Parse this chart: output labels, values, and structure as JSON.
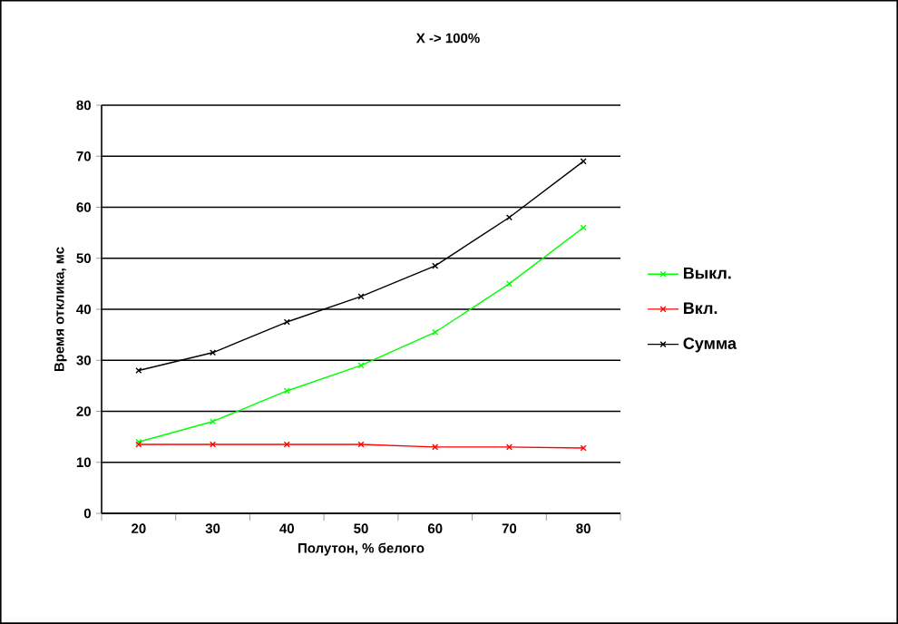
{
  "chart_data": {
    "type": "line",
    "title": "X -> 100%",
    "xlabel": "Полутон, % белого",
    "ylabel": "Время отклика, мс",
    "categories": [
      "20",
      "30",
      "40",
      "50",
      "60",
      "70",
      "80"
    ],
    "series": [
      {
        "name": "Выкл.",
        "color": "#00ff00",
        "values": [
          14,
          18,
          24,
          29,
          35.5,
          45,
          56
        ]
      },
      {
        "name": "Вкл.",
        "color": "#ff0000",
        "values": [
          13.5,
          13.5,
          13.5,
          13.5,
          13,
          13,
          12.8
        ]
      },
      {
        "name": "Сумма",
        "color": "#000000",
        "values": [
          28,
          31.5,
          37.5,
          42.5,
          48.5,
          58,
          69
        ]
      }
    ],
    "ylim": [
      0,
      80
    ],
    "yticks": [
      0,
      10,
      20,
      30,
      40,
      50,
      60,
      70,
      80
    ],
    "grid": "y",
    "legend": "right",
    "marker": "cross",
    "line_style": "solid"
  }
}
